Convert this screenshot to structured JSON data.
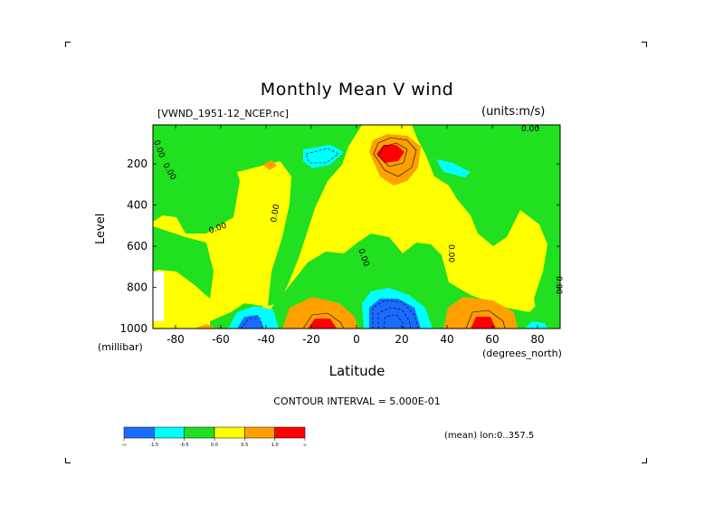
{
  "chart_data": {
    "type": "heatmap",
    "title": "Monthly Mean V wind",
    "file_label": "[VWND_1951-12_NCEP.nc]",
    "units_label": "(units:m/s)",
    "xlabel": "Latitude",
    "x_unit": "(degrees_north)",
    "ylabel": "Level",
    "y_unit": "(millibar)",
    "xlim": [
      -90,
      90
    ],
    "ylim": [
      1000,
      10
    ],
    "x_ticks": [
      "-80",
      "-60",
      "-40",
      "-20",
      "0",
      "20",
      "40",
      "60",
      "80"
    ],
    "y_ticks": [
      "200",
      "400",
      "600",
      "800",
      "1000"
    ],
    "contour_label": "CONTOUR INTERVAL = 5.000E-01",
    "mean_label": "(mean) lon:0..357.5",
    "contour_value_labels": [
      "0.00",
      "0.00",
      "0.00",
      "0.00",
      "0.00",
      "0.00",
      "0.00",
      "0.00"
    ],
    "colorbar": {
      "levels": [
        "-∞",
        "-1.5",
        "-0.5",
        "0.0",
        "0.5",
        "1.0",
        "∞"
      ],
      "colors": [
        "#1a6cff",
        "#00ffff",
        "#20e020",
        "#ffff00",
        "#ffa000",
        "#ff0000"
      ]
    }
  }
}
